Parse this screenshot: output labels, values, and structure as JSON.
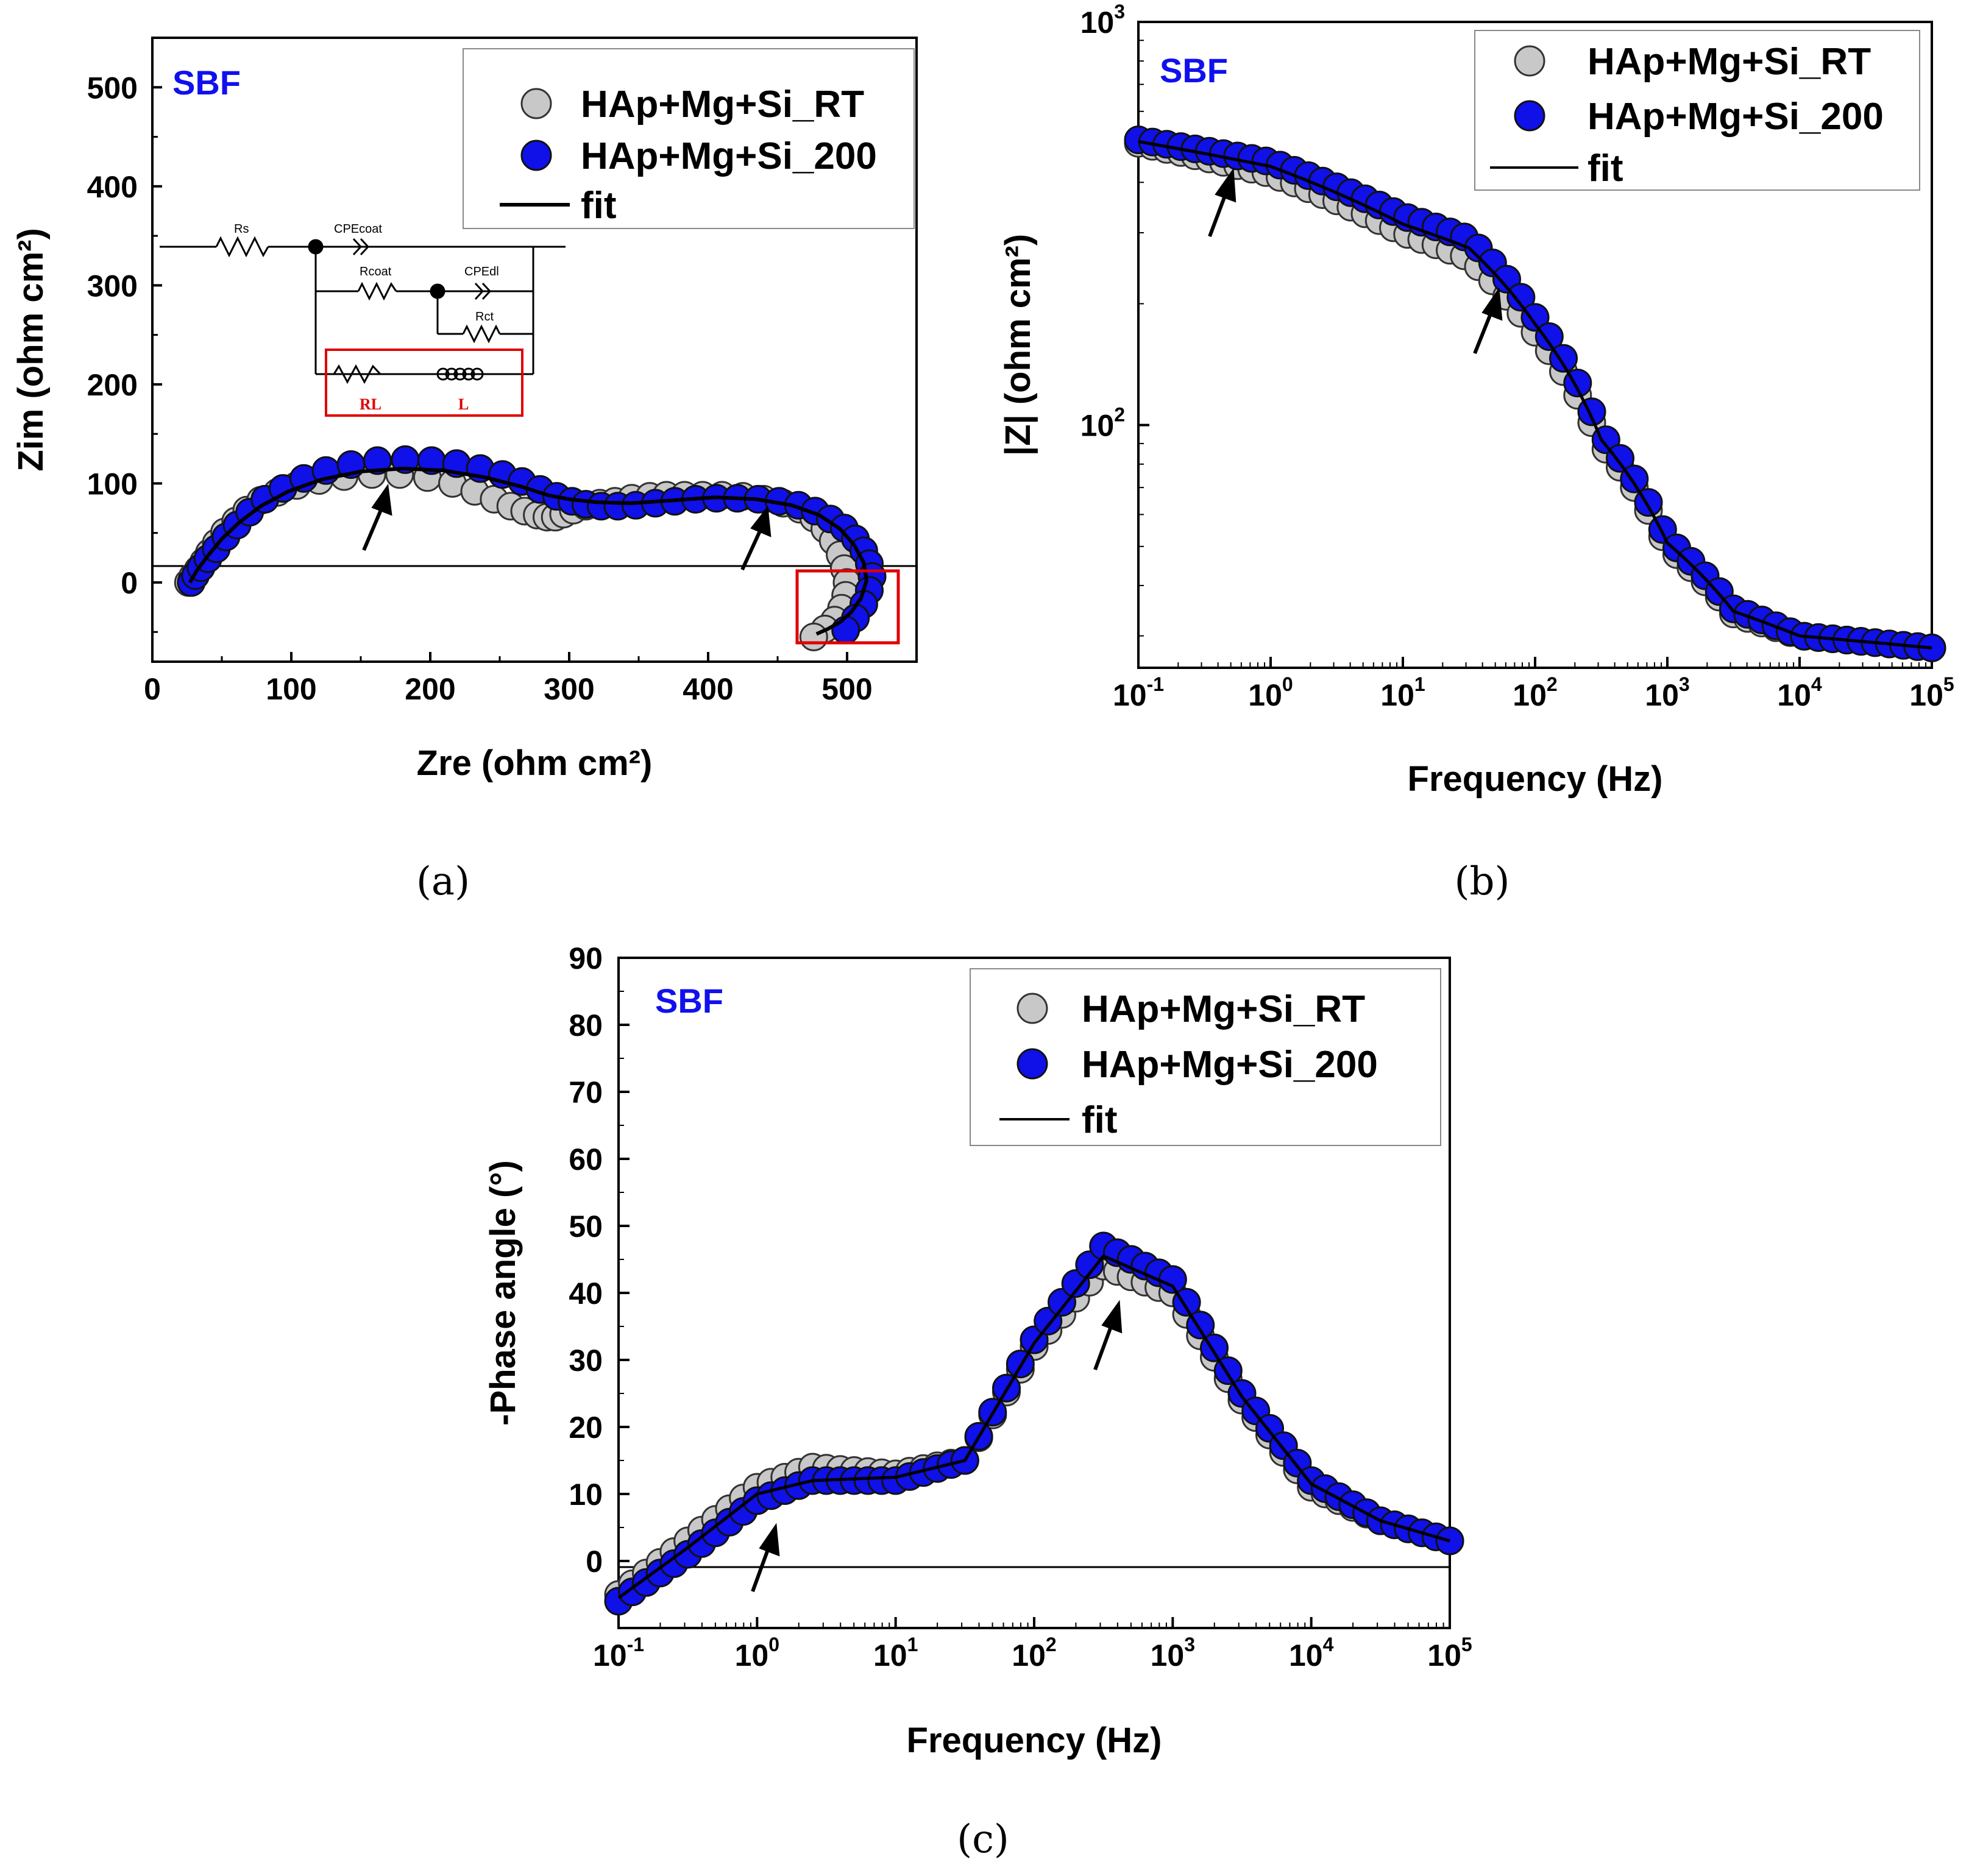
{
  "colors": {
    "rt_fill": "#c8c8c8",
    "k200_fill": "#1010e8",
    "fit_line": "#000000",
    "annotation_blue": "#1010ee",
    "annotation_red": "#e00000"
  },
  "figure": {
    "caption_a": "(a)",
    "caption_b": "(b)",
    "caption_c": "(c)"
  },
  "circuit": {
    "labels": {
      "rs": "Rs",
      "cpecoat": "CPEcoat",
      "rcoat": "Rcoat",
      "cpedl": "CPEdl",
      "rct": "Rct",
      "rl": "RL",
      "l": "L"
    }
  },
  "chart_data": [
    {
      "type": "scatter",
      "id": "a",
      "title": "",
      "annotation": "SBF",
      "xlabel": "Zre (ohm cm²)",
      "ylabel": "Zim (ohm cm²)",
      "xlim": [
        0,
        550
      ],
      "ylim": [
        -80,
        550
      ],
      "xticks": [
        "0",
        "100",
        "200",
        "300",
        "400",
        "500"
      ],
      "yticks": [
        "0",
        "100",
        "200",
        "300",
        "400",
        "500"
      ],
      "legend": {
        "position": "top-right",
        "entries": [
          "HAp+Mg+Si_RT",
          "HAp+Mg+Si_200",
          "fit"
        ]
      },
      "series": [
        {
          "name": "HAp+Mg+Si_RT",
          "x": [
            26,
            29,
            33,
            37,
            41,
            46,
            52,
            60,
            68,
            78,
            90,
            104,
            120,
            138,
            158,
            178,
            198,
            216,
            232,
            246,
            258,
            268,
            277,
            284,
            290,
            296,
            303,
            312,
            322,
            333,
            345,
            358,
            370,
            383,
            396,
            410,
            425,
            440,
            454,
            466,
            476,
            484,
            490,
            495,
            498,
            500,
            499,
            496,
            491,
            484,
            476
          ],
          "y": [
            0,
            6,
            13,
            21,
            30,
            40,
            51,
            62,
            73,
            83,
            91,
            98,
            103,
            107,
            109,
            109,
            106,
            100,
            92,
            84,
            77,
            72,
            68,
            66,
            66,
            69,
            73,
            77,
            80,
            82,
            85,
            87,
            88,
            88,
            88,
            88,
            87,
            84,
            80,
            74,
            65,
            54,
            42,
            28,
            14,
            0,
            -13,
            -26,
            -38,
            -47,
            -55
          ]
        },
        {
          "name": "HAp+Mg+Si_200",
          "x": [
            28,
            31,
            35,
            40,
            46,
            53,
            61,
            70,
            81,
            94,
            109,
            125,
            143,
            162,
            182,
            201,
            219,
            236,
            252,
            266,
            279,
            291,
            302,
            312,
            323,
            335,
            348,
            362,
            376,
            391,
            406,
            421,
            436,
            451,
            465,
            477,
            488,
            498,
            506,
            512,
            516,
            518,
            516,
            512,
            506,
            499
          ],
          "y": [
            0,
            7,
            15,
            24,
            34,
            46,
            58,
            71,
            84,
            95,
            105,
            113,
            119,
            123,
            124,
            123,
            120,
            115,
            109,
            102,
            94,
            87,
            82,
            79,
            77,
            77,
            78,
            80,
            82,
            84,
            85,
            85,
            84,
            82,
            78,
            72,
            64,
            55,
            44,
            32,
            19,
            6,
            -8,
            -22,
            -36,
            -48
          ]
        },
        {
          "name": "fit",
          "x": [
            27,
            32,
            40,
            50,
            62,
            78,
            98,
            122,
            150,
            180,
            210,
            240,
            265,
            285,
            300,
            320,
            345,
            375,
            405,
            435,
            460,
            480,
            495,
            505,
            512,
            514,
            510,
            503,
            495,
            486,
            478
          ],
          "y": [
            0,
            12,
            27,
            44,
            60,
            77,
            92,
            104,
            112,
            115,
            113,
            106,
            97,
            88,
            84,
            81,
            80,
            83,
            86,
            84,
            78,
            68,
            54,
            38,
            20,
            2,
            -16,
            -30,
            -40,
            -47,
            -52
          ]
        }
      ]
    },
    {
      "type": "scatter",
      "id": "b",
      "title": "",
      "annotation": "SBF",
      "xlabel": "Frequency (Hz)",
      "ylabel": "|Z| (ohm cm²)",
      "xscale": "log",
      "yscale": "log",
      "xlim": [
        0.1,
        100000
      ],
      "ylim": [
        25,
        1000
      ],
      "xticks": [
        {
          "base": "10",
          "exp": "-1"
        },
        {
          "base": "10",
          "exp": "0"
        },
        {
          "base": "10",
          "exp": "1"
        },
        {
          "base": "10",
          "exp": "2"
        },
        {
          "base": "10",
          "exp": "3"
        },
        {
          "base": "10",
          "exp": "4"
        },
        {
          "base": "10",
          "exp": "5"
        }
      ],
      "yticks": [
        {
          "base": "10",
          "exp": "2"
        },
        {
          "base": "10",
          "exp": "3"
        }
      ],
      "legend": {
        "position": "top-right",
        "entries": [
          "HAp+Mg+Si_RT",
          "HAp+Mg+Si_200",
          "fit"
        ]
      },
      "series": [
        {
          "name": "HAp+Mg+Si_RT",
          "logf": [
            -1,
            0,
            1,
            1.5,
            2,
            2.5,
            3,
            3.5,
            4,
            4.5,
            5
          ],
          "z": [
            500,
            420,
            300,
            260,
            170,
            90,
            50,
            34,
            30,
            29,
            28
          ]
        },
        {
          "name": "HAp+Mg+Si_200",
          "logf": [
            -1,
            0,
            1,
            1.5,
            2,
            2.5,
            3,
            3.5,
            4,
            4.5,
            5
          ],
          "z": [
            510,
            450,
            330,
            290,
            185,
            95,
            52,
            35,
            30,
            29,
            28
          ]
        },
        {
          "name": "fit",
          "logf": [
            -1,
            0,
            1,
            1.5,
            2,
            2.5,
            3,
            3.5,
            4,
            4.5,
            5
          ],
          "z": [
            505,
            438,
            315,
            275,
            178,
            92,
            51,
            34.5,
            30,
            29,
            28
          ]
        }
      ]
    },
    {
      "type": "scatter",
      "id": "c",
      "title": "",
      "annotation": "SBF",
      "xlabel": "Frequency (Hz)",
      "ylabel": "-Phase angle (°)",
      "xscale": "log",
      "xlim": [
        0.1,
        100000
      ],
      "ylim": [
        -10,
        90
      ],
      "xticks": [
        {
          "base": "10",
          "exp": "-1"
        },
        {
          "base": "10",
          "exp": "0"
        },
        {
          "base": "10",
          "exp": "1"
        },
        {
          "base": "10",
          "exp": "2"
        },
        {
          "base": "10",
          "exp": "3"
        },
        {
          "base": "10",
          "exp": "4"
        },
        {
          "base": "10",
          "exp": "5"
        }
      ],
      "yticks": [
        "0",
        "10",
        "20",
        "30",
        "40",
        "50",
        "60",
        "70",
        "80",
        "90"
      ],
      "legend": {
        "position": "top-right",
        "entries": [
          "HAp+Mg+Si_RT",
          "HAp+Mg+Si_200",
          "fit"
        ]
      },
      "series": [
        {
          "name": "HAp+Mg+Si_RT",
          "logf": [
            -1,
            -0.5,
            0,
            0.4,
            1,
            1.5,
            2,
            2.5,
            3,
            3.5,
            4,
            4.5,
            5
          ],
          "phase": [
            -5,
            3,
            11,
            14,
            13,
            15,
            32,
            44,
            40,
            24,
            11,
            6,
            3
          ]
        },
        {
          "name": "HAp+Mg+Si_200",
          "logf": [
            -1,
            -0.5,
            0,
            0.4,
            1,
            1.5,
            2,
            2.5,
            3,
            3.5,
            4,
            4.5,
            5
          ],
          "phase": [
            -6,
            1,
            9,
            12,
            12,
            15,
            33,
            47,
            42,
            25,
            12,
            6,
            3
          ]
        },
        {
          "name": "fit",
          "logf": [
            -1,
            -0.5,
            0,
            0.4,
            1,
            1.5,
            2,
            2.5,
            3,
            3.5,
            4,
            4.5,
            5
          ],
          "phase": [
            -5.5,
            2,
            10,
            12,
            12.5,
            15,
            32.5,
            45.5,
            41,
            24.5,
            11.5,
            6,
            3
          ]
        }
      ]
    }
  ]
}
